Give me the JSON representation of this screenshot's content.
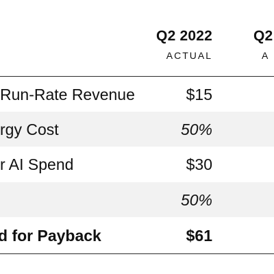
{
  "columns": [
    {
      "period": "Q2 2022",
      "kind": "ACTUAL"
    },
    {
      "period": "Q2",
      "kind": "A"
    }
  ],
  "rows": [
    {
      "label": "Run-Rate Revenue",
      "value": "$15"
    },
    {
      "label": "rgy Cost",
      "value": "50%"
    },
    {
      "label": "r AI Spend",
      "value": "$30"
    },
    {
      "label": "",
      "value": "50%"
    },
    {
      "label": "d for Payback",
      "value": "$61"
    }
  ],
  "colors": {
    "shade": "#f2f2f2",
    "rule": "#2a2a2a",
    "text": "#111111"
  }
}
